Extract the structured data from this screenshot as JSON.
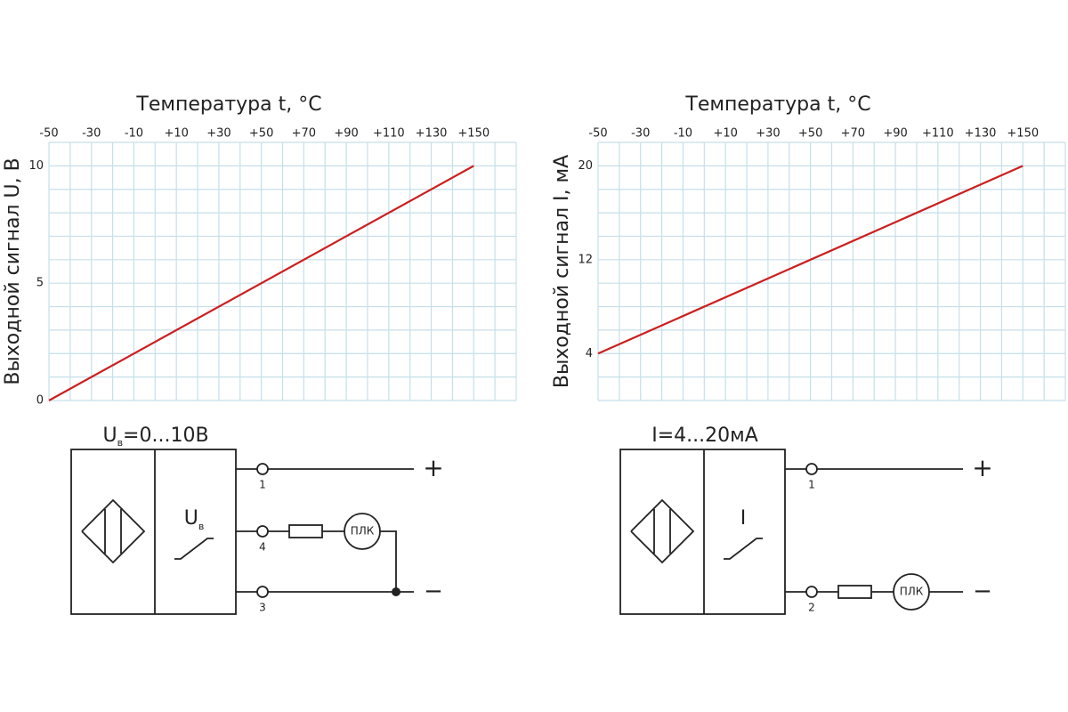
{
  "chart_data": [
    {
      "type": "line",
      "x_label": "Температура t, °C",
      "y_label": "Выходной сигнал U, В",
      "x": [
        -50,
        150
      ],
      "series": [
        {
          "color": "#cc1f1f",
          "values": [
            0,
            10
          ]
        }
      ],
      "xlim": [
        -50,
        170
      ],
      "ylim": [
        0,
        11
      ],
      "xticks": [
        -50,
        -30,
        -10,
        {
          "value": 10,
          "label": "+10"
        },
        {
          "value": 30,
          "label": "+30"
        },
        {
          "value": 50,
          "label": "+50"
        },
        {
          "value": 70,
          "label": "+70"
        },
        {
          "value": 90,
          "label": "+90"
        },
        {
          "value": 110,
          "label": "+110"
        },
        {
          "value": 130,
          "label": "+130"
        },
        {
          "value": 150,
          "label": "+150"
        }
      ],
      "yticks": [
        0,
        5,
        10
      ],
      "xgrid": [
        -50,
        -40,
        -30,
        -20,
        -10,
        0,
        10,
        20,
        30,
        40,
        50,
        60,
        70,
        80,
        90,
        100,
        110,
        120,
        130,
        140,
        150,
        160,
        170
      ],
      "ygrid": [
        0,
        1,
        2,
        3,
        4,
        5,
        6,
        7,
        8,
        9,
        10,
        11
      ]
    },
    {
      "type": "line",
      "x_label": "Температура t, °C",
      "y_label": "Выходной сигнал I, мА",
      "x": [
        -50,
        150
      ],
      "series": [
        {
          "color": "#cc1f1f",
          "values": [
            4,
            20
          ]
        }
      ],
      "xlim": [
        -50,
        170
      ],
      "ylim": [
        0,
        22
      ],
      "xticks": [
        -50,
        -30,
        -10,
        {
          "value": 10,
          "label": "+10"
        },
        {
          "value": 30,
          "label": "+30"
        },
        {
          "value": 50,
          "label": "+50"
        },
        {
          "value": 70,
          "label": "+70"
        },
        {
          "value": 90,
          "label": "+90"
        },
        {
          "value": 110,
          "label": "+110"
        },
        {
          "value": 130,
          "label": "+130"
        },
        {
          "value": 150,
          "label": "+150"
        }
      ],
      "yticks": [
        4,
        12,
        20
      ],
      "xgrid": [
        -50,
        -40,
        -30,
        -20,
        -10,
        0,
        10,
        20,
        30,
        40,
        50,
        60,
        70,
        80,
        90,
        100,
        110,
        120,
        130,
        140,
        150,
        160,
        170
      ],
      "ygrid": [
        0,
        2,
        4,
        6,
        8,
        10,
        12,
        14,
        16,
        18,
        20,
        22
      ]
    }
  ],
  "diagrams": [
    {
      "title": {
        "main": "U",
        "sub": "в",
        "rest": "=0...10В"
      },
      "output": {
        "main": "U",
        "sub": "в"
      },
      "terminals": [
        "1",
        "4",
        "3"
      ],
      "plc": "ПЛК",
      "plus": "+",
      "minus": "−"
    },
    {
      "title": {
        "main": "I=4...20мА"
      },
      "output": {
        "main": "I"
      },
      "terminals": [
        "1",
        "2"
      ],
      "plc": "ПЛК",
      "plus": "+",
      "minus": "−"
    }
  ]
}
